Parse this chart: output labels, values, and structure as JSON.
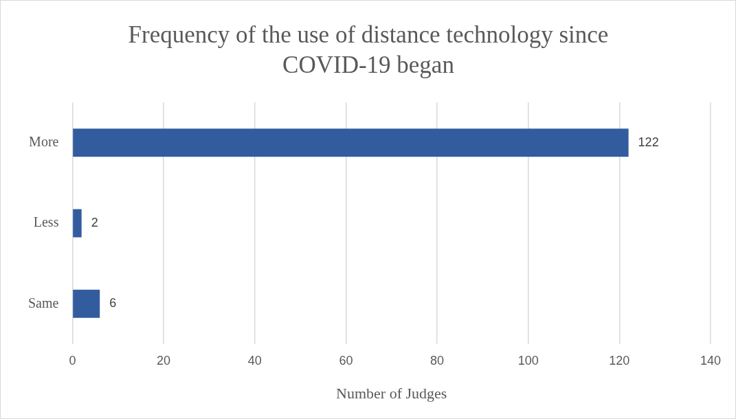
{
  "chart_data": {
    "type": "bar",
    "orientation": "horizontal",
    "title": "Frequency of the use of distance technology since COVID-19 began",
    "xlabel": "Number of Judges",
    "categories": [
      "More",
      "Less",
      "Same"
    ],
    "values": [
      122,
      2,
      6
    ],
    "color": "#335c9e",
    "xlim": [
      0,
      140
    ],
    "xticks": [
      0,
      20,
      40,
      60,
      80,
      100,
      120,
      140
    ],
    "grid": "x",
    "data_labels": true
  }
}
